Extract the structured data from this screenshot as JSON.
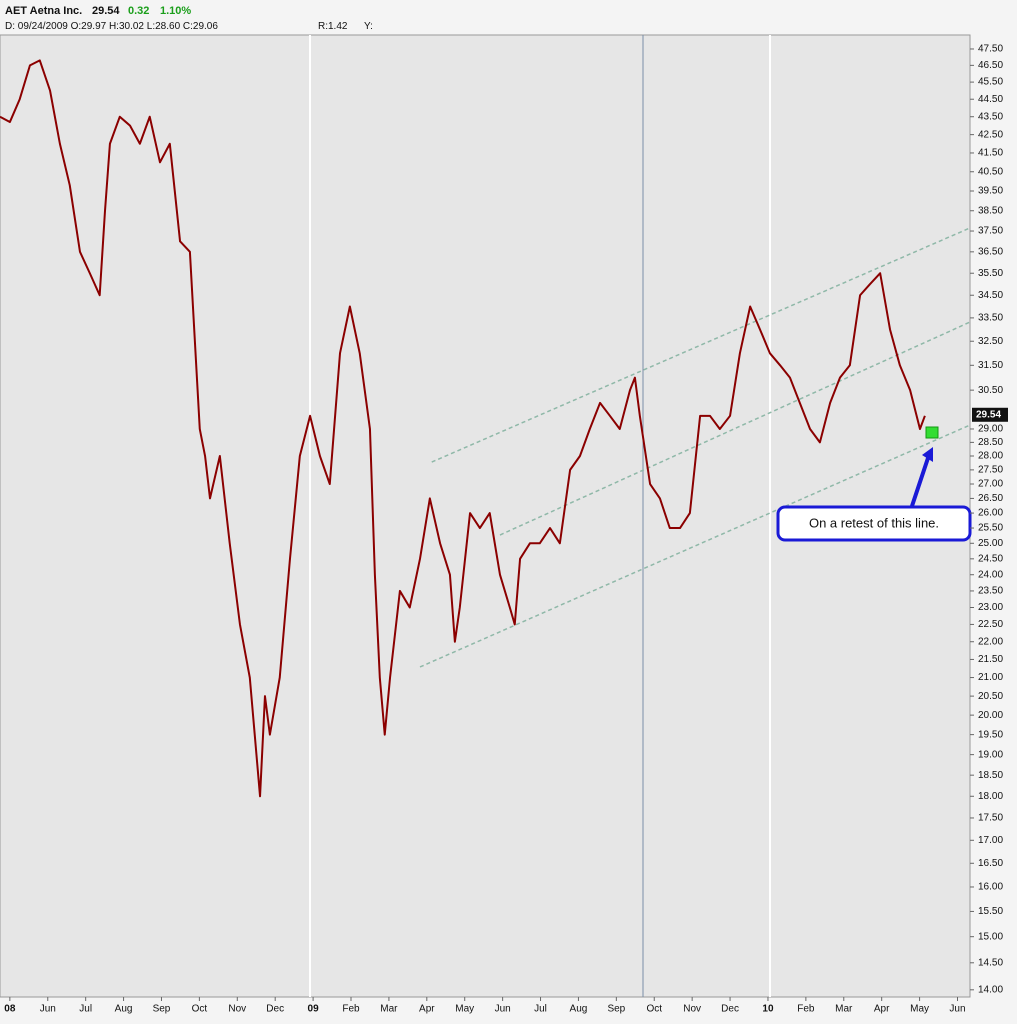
{
  "chart_data": {
    "type": "line",
    "title": "AET Aetna Inc.",
    "last": 29.54,
    "change": 0.32,
    "change_pct": "1.10%",
    "info_line": "D: 09/24/2009 O:29.97 H:30.02 L:28.60 C:29.06",
    "r_label": "R:1.42",
    "y_label": "Y:",
    "annotation": "On a retest of this line.",
    "scale": "log",
    "xlim": [
      -0.26,
      25.33
    ],
    "ylim": [
      13.87,
      48.37
    ],
    "xticks": [
      {
        "value": 0,
        "label": "08"
      },
      {
        "value": 1,
        "label": "Jun"
      },
      {
        "value": 2,
        "label": "Jul"
      },
      {
        "value": 3,
        "label": "Aug"
      },
      {
        "value": 4,
        "label": "Sep"
      },
      {
        "value": 5,
        "label": "Oct"
      },
      {
        "value": 6,
        "label": "Nov"
      },
      {
        "value": 7,
        "label": "Dec"
      },
      {
        "value": 8,
        "label": "09"
      },
      {
        "value": 9,
        "label": "Feb"
      },
      {
        "value": 10,
        "label": "Mar"
      },
      {
        "value": 11,
        "label": "Apr"
      },
      {
        "value": 12,
        "label": "May"
      },
      {
        "value": 13,
        "label": "Jun"
      },
      {
        "value": 14,
        "label": "Jul"
      },
      {
        "value": 15,
        "label": "Aug"
      },
      {
        "value": 16,
        "label": "Sep"
      },
      {
        "value": 17,
        "label": "Oct"
      },
      {
        "value": 18,
        "label": "Nov"
      },
      {
        "value": 19,
        "label": "Dec"
      },
      {
        "value": 20,
        "label": "10"
      },
      {
        "value": 21,
        "label": "Feb"
      },
      {
        "value": 22,
        "label": "Mar"
      },
      {
        "value": 23,
        "label": "Apr"
      },
      {
        "value": 24,
        "label": "May"
      },
      {
        "value": 25,
        "label": "Jun"
      }
    ],
    "yticks": [
      {
        "value": 14,
        "label": "14.00"
      },
      {
        "value": 14.5,
        "label": "14.50"
      },
      {
        "value": 15,
        "label": "15.00"
      },
      {
        "value": 15.5,
        "label": "15.50"
      },
      {
        "value": 16,
        "label": "16.00"
      },
      {
        "value": 16.5,
        "label": "16.50"
      },
      {
        "value": 17,
        "label": "17.00"
      },
      {
        "value": 17.5,
        "label": "17.50"
      },
      {
        "value": 18,
        "label": "18.00"
      },
      {
        "value": 18.5,
        "label": "18.50"
      },
      {
        "value": 19,
        "label": "19.00"
      },
      {
        "value": 19.5,
        "label": "19.50"
      },
      {
        "value": 20,
        "label": "20.00"
      },
      {
        "value": 20.5,
        "label": "20.50"
      },
      {
        "value": 21,
        "label": "21.00"
      },
      {
        "value": 21.5,
        "label": "21.50"
      },
      {
        "value": 22,
        "label": "22.00"
      },
      {
        "value": 22.5,
        "label": "22.50"
      },
      {
        "value": 23,
        "label": "23.00"
      },
      {
        "value": 23.5,
        "label": "23.50"
      },
      {
        "value": 24,
        "label": "24.00"
      },
      {
        "value": 24.5,
        "label": "24.50"
      },
      {
        "value": 25,
        "label": "25.00"
      },
      {
        "value": 25.5,
        "label": "25.50"
      },
      {
        "value": 26,
        "label": "26.00"
      },
      {
        "value": 26.5,
        "label": "26.50"
      },
      {
        "value": 27,
        "label": "27.00"
      },
      {
        "value": 27.5,
        "label": "27.50"
      },
      {
        "value": 28,
        "label": "28.00"
      },
      {
        "value": 28.5,
        "label": "28.50"
      },
      {
        "value": 29,
        "label": "29.00"
      },
      {
        "value": 30.5,
        "label": "30.50"
      },
      {
        "value": 31.5,
        "label": "31.50"
      },
      {
        "value": 32.5,
        "label": "32.50"
      },
      {
        "value": 33.5,
        "label": "33.50"
      },
      {
        "value": 34.5,
        "label": "34.50"
      },
      {
        "value": 35.5,
        "label": "35.50"
      },
      {
        "value": 36.5,
        "label": "36.50"
      },
      {
        "value": 37.5,
        "label": "37.50"
      },
      {
        "value": 38.5,
        "label": "38.50"
      },
      {
        "value": 39.5,
        "label": "39.50"
      },
      {
        "value": 40.5,
        "label": "40.50"
      },
      {
        "value": 41.5,
        "label": "41.50"
      },
      {
        "value": 42.5,
        "label": "42.50"
      },
      {
        "value": 43.5,
        "label": "43.50"
      },
      {
        "value": 44.5,
        "label": "44.50"
      },
      {
        "value": 45.5,
        "label": "45.50"
      },
      {
        "value": 46.5,
        "label": "46.50"
      },
      {
        "value": 47.5,
        "label": "47.50"
      }
    ],
    "series": [
      {
        "color": "#8b0000",
        "x": [
          -0.26,
          0,
          0.26,
          0.53,
          0.79,
          1.06,
          1.32,
          1.58,
          1.85,
          2.11,
          2.37,
          2.51,
          2.64,
          2.9,
          3.17,
          3.43,
          3.69,
          3.96,
          4.22,
          4.49,
          4.75,
          5.01,
          5.15,
          5.28,
          5.54,
          5.8,
          6.07,
          6.33,
          6.46,
          6.6,
          6.73,
          6.86,
          7.12,
          7.39,
          7.65,
          7.92,
          8.18,
          8.44,
          8.71,
          8.97,
          9.23,
          9.5,
          9.63,
          9.76,
          9.89,
          10.03,
          10.29,
          10.55,
          10.82,
          11.08,
          11.35,
          11.61,
          11.74,
          11.87,
          12.14,
          12.4,
          12.66,
          12.93,
          13.19,
          13.32,
          13.46,
          13.72,
          13.98,
          14.25,
          14.51,
          14.78,
          15.04,
          15.3,
          15.57,
          15.83,
          16.09,
          16.36,
          16.49,
          16.62,
          16.89,
          17.15,
          17.41,
          17.68,
          17.94,
          18.21,
          18.47,
          18.73,
          19,
          19.26,
          19.53,
          19.79,
          20.05,
          20.32,
          20.58,
          20.84,
          21.11,
          21.37,
          21.64,
          21.9,
          22.16,
          22.43,
          22.69,
          22.96,
          23.22,
          23.48,
          23.75,
          24.01,
          24.14
        ],
        "values": [
          43.5,
          43.2,
          44.5,
          46.5,
          46.8,
          45,
          42,
          39.8,
          36.5,
          35.5,
          34.5,
          38.5,
          42,
          43.5,
          43,
          42,
          43.5,
          41,
          42,
          37,
          36.5,
          29,
          28,
          26.5,
          28,
          25,
          22.5,
          21,
          19.5,
          18,
          20.5,
          19.5,
          21,
          24.5,
          28,
          29.5,
          28,
          27,
          32,
          34,
          32,
          29,
          24,
          21,
          19.5,
          21,
          23.5,
          23,
          24.5,
          26.5,
          25,
          24,
          22,
          23,
          26,
          25.5,
          26,
          24,
          23,
          22.5,
          24.5,
          25,
          25,
          25.5,
          25,
          27.5,
          28,
          29,
          30,
          29.5,
          29,
          30.5,
          31,
          29.5,
          27,
          26.5,
          25.5,
          25.5,
          26,
          29.5,
          29.5,
          29,
          29.5,
          32,
          34,
          33,
          32,
          31.5,
          31,
          30,
          29,
          28.5,
          30,
          31,
          31.5,
          34.5,
          35,
          35.5,
          33,
          31.5,
          30.5,
          29,
          29.5
        ]
      }
    ],
    "trendlines": [
      {
        "x": [
          10.82,
          25.33
        ],
        "values": [
          21.29,
          29.15
        ]
      },
      {
        "x": [
          12.93,
          25.33
        ],
        "values": [
          25.27,
          33.32
        ]
      },
      {
        "x": [
          11.13,
          25.33
        ],
        "values": [
          27.78,
          37.65
        ]
      }
    ]
  }
}
